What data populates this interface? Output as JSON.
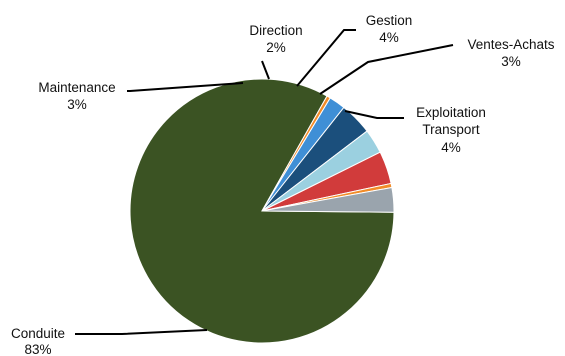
{
  "chart_data": {
    "type": "pie",
    "title": "",
    "slices": [
      {
        "label": "Conduite",
        "value": 83,
        "value_label": "83%",
        "color": "#3b5323",
        "labeled": true
      },
      {
        "label": "",
        "value": 0.45,
        "value_label": "",
        "color": "#f28c28",
        "labeled": false
      },
      {
        "label": "Direction",
        "value": 2,
        "value_label": "2%",
        "color": "#3f8fd6",
        "labeled": true
      },
      {
        "label": "Gestion",
        "value": 4,
        "value_label": "4%",
        "color": "#1b4f7c",
        "labeled": true
      },
      {
        "label": "Ventes-Achats",
        "value": 3,
        "value_label": "3%",
        "color": "#9bd0e0",
        "labeled": true
      },
      {
        "label": "Exploitation Transport",
        "label_lines": [
          "Exploitation",
          "Transport"
        ],
        "value": 4,
        "value_label": "4%",
        "color": "#d13b3b",
        "labeled": true
      },
      {
        "label": "",
        "value": 0.5,
        "value_label": "",
        "color": "#f28c28",
        "labeled": false
      },
      {
        "label": "Maintenance",
        "value": 3,
        "value_label": "3%",
        "color": "#9aa4ad",
        "labeled": true
      }
    ]
  }
}
